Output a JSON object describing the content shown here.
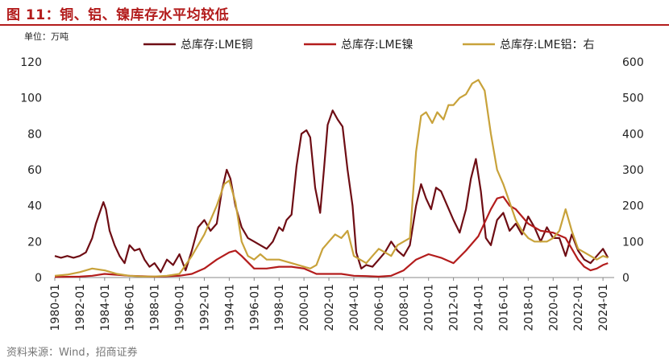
{
  "title": "图 11：铜、铝、镍库存水平均较低",
  "unit_label": "单位：万吨",
  "source": "资料来源：Wind，招商证券",
  "chart_data": {
    "type": "line",
    "x_ticks": [
      "1980-01",
      "1982-01",
      "1984-01",
      "1986-01",
      "1988-01",
      "1990-01",
      "1992-01",
      "1994-01",
      "1996-01",
      "1998-01",
      "2000-01",
      "2002-01",
      "2004-01",
      "2006-01",
      "2008-01",
      "2010-01",
      "2012-01",
      "2014-01",
      "2016-01",
      "2018-01",
      "2020-01",
      "2022-01",
      "2024-01"
    ],
    "x_range": [
      1980.0,
      2024.9
    ],
    "y_left": {
      "ticks": [
        0,
        20,
        40,
        60,
        80,
        100,
        120
      ],
      "range": [
        0,
        120
      ]
    },
    "y_right": {
      "ticks": [
        0,
        100,
        200,
        300,
        400,
        500,
        600
      ],
      "range": [
        0,
        600
      ]
    },
    "series": [
      {
        "name": "总库存:LME铜",
        "axis": "left",
        "color": "#6e0d14",
        "points": [
          [
            1980.0,
            12
          ],
          [
            1980.5,
            11
          ],
          [
            1981.0,
            12
          ],
          [
            1981.5,
            11
          ],
          [
            1982.0,
            12
          ],
          [
            1982.5,
            14
          ],
          [
            1983.0,
            22
          ],
          [
            1983.3,
            30
          ],
          [
            1983.6,
            36
          ],
          [
            1983.9,
            42
          ],
          [
            1984.1,
            38
          ],
          [
            1984.4,
            26
          ],
          [
            1984.8,
            18
          ],
          [
            1985.2,
            12
          ],
          [
            1985.6,
            8
          ],
          [
            1986.0,
            18
          ],
          [
            1986.4,
            15
          ],
          [
            1986.8,
            16
          ],
          [
            1987.2,
            10
          ],
          [
            1987.6,
            6
          ],
          [
            1988.0,
            8
          ],
          [
            1988.5,
            3
          ],
          [
            1989.0,
            10
          ],
          [
            1989.5,
            7
          ],
          [
            1990.0,
            13
          ],
          [
            1990.5,
            4
          ],
          [
            1991.0,
            15
          ],
          [
            1991.5,
            28
          ],
          [
            1992.0,
            32
          ],
          [
            1992.5,
            26
          ],
          [
            1993.0,
            30
          ],
          [
            1993.4,
            48
          ],
          [
            1993.8,
            60
          ],
          [
            1994.1,
            55
          ],
          [
            1994.5,
            40
          ],
          [
            1995.0,
            28
          ],
          [
            1995.5,
            22
          ],
          [
            1996.0,
            20
          ],
          [
            1996.5,
            18
          ],
          [
            1997.0,
            16
          ],
          [
            1997.5,
            20
          ],
          [
            1998.0,
            28
          ],
          [
            1998.3,
            26
          ],
          [
            1998.6,
            32
          ],
          [
            1999.0,
            35
          ],
          [
            1999.4,
            62
          ],
          [
            1999.8,
            80
          ],
          [
            2000.2,
            82
          ],
          [
            2000.5,
            78
          ],
          [
            2000.9,
            50
          ],
          [
            2001.3,
            36
          ],
          [
            2001.6,
            60
          ],
          [
            2001.9,
            85
          ],
          [
            2002.3,
            93
          ],
          [
            2002.7,
            88
          ],
          [
            2003.1,
            84
          ],
          [
            2003.5,
            60
          ],
          [
            2003.9,
            40
          ],
          [
            2004.2,
            14
          ],
          [
            2004.6,
            5
          ],
          [
            2005.0,
            7
          ],
          [
            2005.5,
            6
          ],
          [
            2006.0,
            10
          ],
          [
            2006.5,
            14
          ],
          [
            2007.0,
            20
          ],
          [
            2007.5,
            15
          ],
          [
            2008.0,
            12
          ],
          [
            2008.5,
            18
          ],
          [
            2009.0,
            40
          ],
          [
            2009.4,
            52
          ],
          [
            2009.8,
            44
          ],
          [
            2010.2,
            38
          ],
          [
            2010.6,
            50
          ],
          [
            2011.0,
            48
          ],
          [
            2011.5,
            40
          ],
          [
            2012.0,
            32
          ],
          [
            2012.5,
            25
          ],
          [
            2013.0,
            38
          ],
          [
            2013.4,
            55
          ],
          [
            2013.8,
            66
          ],
          [
            2014.2,
            48
          ],
          [
            2014.6,
            22
          ],
          [
            2015.0,
            18
          ],
          [
            2015.5,
            32
          ],
          [
            2016.0,
            36
          ],
          [
            2016.5,
            26
          ],
          [
            2017.0,
            30
          ],
          [
            2017.5,
            24
          ],
          [
            2018.0,
            34
          ],
          [
            2018.5,
            28
          ],
          [
            2019.0,
            20
          ],
          [
            2019.5,
            28
          ],
          [
            2020.0,
            22
          ],
          [
            2020.5,
            22
          ],
          [
            2021.0,
            12
          ],
          [
            2021.5,
            24
          ],
          [
            2022.0,
            15
          ],
          [
            2022.5,
            10
          ],
          [
            2023.0,
            8
          ],
          [
            2023.5,
            12
          ],
          [
            2024.0,
            16
          ],
          [
            2024.4,
            11
          ]
        ]
      },
      {
        "name": "总库存:LME镍",
        "axis": "left",
        "color": "#b31c1c",
        "points": [
          [
            1980.0,
            0.3
          ],
          [
            1982.0,
            0.5
          ],
          [
            1983.0,
            1
          ],
          [
            1984.0,
            2
          ],
          [
            1985.0,
            1.5
          ],
          [
            1986.0,
            1
          ],
          [
            1988.0,
            0.5
          ],
          [
            1990.0,
            1
          ],
          [
            1991.0,
            2
          ],
          [
            1992.0,
            5
          ],
          [
            1993.0,
            10
          ],
          [
            1994.0,
            14
          ],
          [
            1994.5,
            15
          ],
          [
            1995.0,
            12
          ],
          [
            1996.0,
            5
          ],
          [
            1997.0,
            5
          ],
          [
            1998.0,
            6
          ],
          [
            1999.0,
            6
          ],
          [
            2000.0,
            5
          ],
          [
            2001.0,
            2
          ],
          [
            2002.0,
            2
          ],
          [
            2003.0,
            2
          ],
          [
            2004.0,
            1
          ],
          [
            2005.0,
            0.8
          ],
          [
            2006.0,
            0.5
          ],
          [
            2007.0,
            1
          ],
          [
            2008.0,
            4
          ],
          [
            2009.0,
            10
          ],
          [
            2010.0,
            13
          ],
          [
            2011.0,
            11
          ],
          [
            2012.0,
            8
          ],
          [
            2013.0,
            15
          ],
          [
            2014.0,
            23
          ],
          [
            2015.0,
            38
          ],
          [
            2015.5,
            44
          ],
          [
            2016.0,
            45
          ],
          [
            2016.5,
            40
          ],
          [
            2017.0,
            38
          ],
          [
            2018.0,
            30
          ],
          [
            2019.0,
            26
          ],
          [
            2020.0,
            25
          ],
          [
            2021.0,
            22
          ],
          [
            2022.0,
            10
          ],
          [
            2022.5,
            6
          ],
          [
            2023.0,
            4
          ],
          [
            2023.5,
            5
          ],
          [
            2024.0,
            7
          ],
          [
            2024.4,
            8
          ]
        ]
      },
      {
        "name": "总库存:LME铝：右",
        "axis": "right",
        "color": "#c8a23a",
        "points": [
          [
            1980.0,
            5
          ],
          [
            1981.0,
            8
          ],
          [
            1982.0,
            15
          ],
          [
            1983.0,
            25
          ],
          [
            1984.0,
            20
          ],
          [
            1985.0,
            10
          ],
          [
            1986.0,
            5
          ],
          [
            1987.0,
            3
          ],
          [
            1988.0,
            3
          ],
          [
            1989.0,
            5
          ],
          [
            1990.0,
            10
          ],
          [
            1991.0,
            60
          ],
          [
            1992.0,
            120
          ],
          [
            1993.0,
            200
          ],
          [
            1993.6,
            260
          ],
          [
            1994.0,
            270
          ],
          [
            1994.5,
            210
          ],
          [
            1995.0,
            100
          ],
          [
            1995.5,
            60
          ],
          [
            1996.0,
            50
          ],
          [
            1996.5,
            65
          ],
          [
            1997.0,
            50
          ],
          [
            1998.0,
            50
          ],
          [
            1999.0,
            40
          ],
          [
            2000.0,
            30
          ],
          [
            2000.5,
            25
          ],
          [
            2001.0,
            35
          ],
          [
            2001.5,
            80
          ],
          [
            2002.0,
            100
          ],
          [
            2002.5,
            120
          ],
          [
            2003.0,
            110
          ],
          [
            2003.5,
            130
          ],
          [
            2004.0,
            60
          ],
          [
            2004.5,
            50
          ],
          [
            2005.0,
            40
          ],
          [
            2005.5,
            60
          ],
          [
            2006.0,
            80
          ],
          [
            2006.5,
            70
          ],
          [
            2007.0,
            60
          ],
          [
            2007.5,
            90
          ],
          [
            2008.0,
            100
          ],
          [
            2008.5,
            110
          ],
          [
            2009.0,
            350
          ],
          [
            2009.4,
            450
          ],
          [
            2009.8,
            460
          ],
          [
            2010.3,
            430
          ],
          [
            2010.7,
            460
          ],
          [
            2011.2,
            440
          ],
          [
            2011.6,
            480
          ],
          [
            2012.0,
            480
          ],
          [
            2012.5,
            500
          ],
          [
            2013.0,
            510
          ],
          [
            2013.5,
            540
          ],
          [
            2014.0,
            550
          ],
          [
            2014.5,
            520
          ],
          [
            2015.0,
            400
          ],
          [
            2015.5,
            300
          ],
          [
            2016.0,
            260
          ],
          [
            2016.5,
            210
          ],
          [
            2017.0,
            160
          ],
          [
            2017.5,
            130
          ],
          [
            2018.0,
            110
          ],
          [
            2018.5,
            100
          ],
          [
            2019.0,
            100
          ],
          [
            2019.5,
            100
          ],
          [
            2020.0,
            110
          ],
          [
            2020.5,
            130
          ],
          [
            2021.0,
            190
          ],
          [
            2021.5,
            130
          ],
          [
            2022.0,
            80
          ],
          [
            2022.5,
            70
          ],
          [
            2023.0,
            60
          ],
          [
            2023.5,
            50
          ],
          [
            2024.0,
            60
          ],
          [
            2024.4,
            55
          ]
        ]
      }
    ]
  }
}
